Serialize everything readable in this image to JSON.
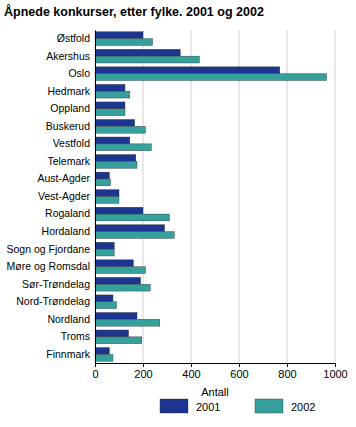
{
  "chart_data": {
    "type": "bar",
    "orientation": "horizontal",
    "title": "Åpnede konkurser, etter fylke. 2001 og 2002",
    "x_label": "Antall",
    "categories": [
      "Østfold",
      "Akershus",
      "Oslo",
      "Hedmark",
      "Oppland",
      "Buskerud",
      "Vestfold",
      "Telemark",
      "Aust-Agder",
      "Vest-Agder",
      "Rogaland",
      "Hordaland",
      "Sogn og Fjordane",
      "Møre og Romsdal",
      "Sør-Trøndelag",
      "Nord-Trøndelag",
      "Nordland",
      "Troms",
      "Finnmark"
    ],
    "series": [
      {
        "name": "2001",
        "color": "#1b3591",
        "values": [
          200,
          355,
          770,
          125,
          125,
          165,
          145,
          170,
          60,
          100,
          200,
          290,
          80,
          160,
          190,
          75,
          175,
          140,
          60
        ]
      },
      {
        "name": "2002",
        "color": "#35a09c",
        "values": [
          240,
          435,
          965,
          145,
          125,
          210,
          235,
          175,
          65,
          100,
          310,
          330,
          80,
          210,
          230,
          90,
          270,
          195,
          75
        ]
      }
    ],
    "xlim": [
      0,
      1000
    ],
    "xticks": [
      0,
      200,
      400,
      600,
      800,
      1000
    ],
    "grid": true,
    "legend": "bottom"
  }
}
